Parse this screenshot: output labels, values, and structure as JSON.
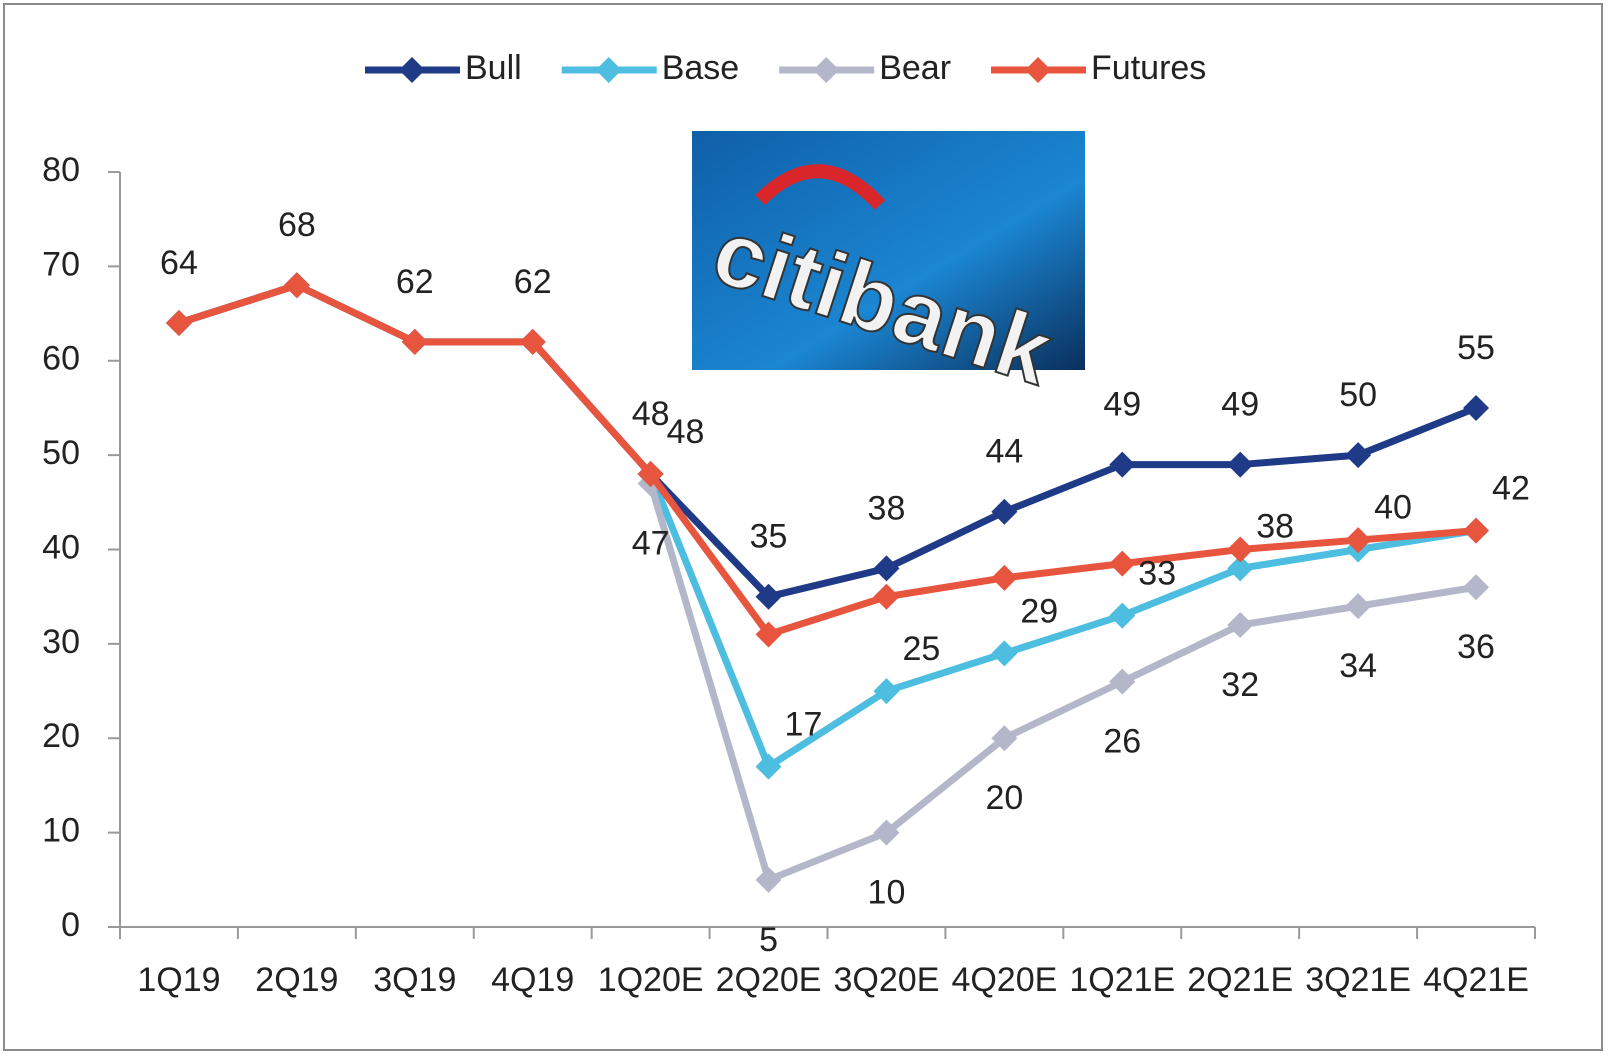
{
  "chart_data": {
    "type": "line",
    "image_text": "citibank",
    "categories": [
      "1Q19",
      "2Q19",
      "3Q19",
      "4Q19",
      "1Q20E",
      "2Q20E",
      "3Q20E",
      "4Q20E",
      "1Q21E",
      "2Q21E",
      "3Q21E",
      "4Q21E"
    ],
    "series": [
      {
        "name": "Bull",
        "color": "#1f3a86",
        "labels": "above",
        "values": [
          64,
          68,
          62,
          62,
          48,
          35,
          38,
          44,
          49,
          49,
          50,
          55
        ]
      },
      {
        "name": "Base",
        "color": "#4dbde0",
        "labels": "right",
        "values": [
          null,
          null,
          null,
          null,
          48,
          17,
          25,
          29,
          33,
          38,
          40,
          42
        ]
      },
      {
        "name": "Bear",
        "color": "#b3b7c9",
        "labels": "below",
        "values": [
          null,
          null,
          null,
          null,
          47,
          5,
          10,
          20,
          26,
          32,
          34,
          36
        ]
      },
      {
        "name": "Futures",
        "color": "#e8553f",
        "labels": "none",
        "values": [
          64,
          68,
          62,
          62,
          48,
          31,
          35,
          37,
          38.5,
          40,
          41,
          42
        ]
      }
    ],
    "ylim": [
      0,
      80
    ],
    "yticks": [
      0,
      10,
      20,
      30,
      40,
      50,
      60,
      70,
      80
    ],
    "grid": false,
    "legend": "top"
  }
}
